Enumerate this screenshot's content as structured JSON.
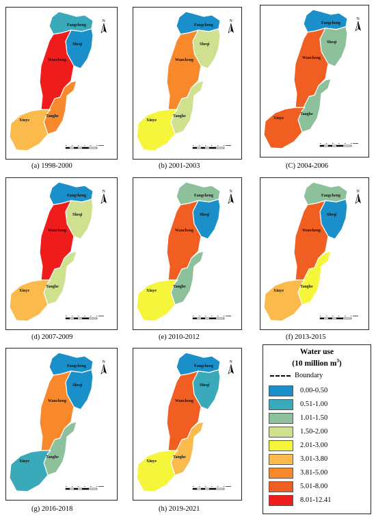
{
  "colors": {
    "c1": "#1a8fc9",
    "c2": "#3aa9b9",
    "c3": "#8dc19b",
    "c4": "#cfe08e",
    "c5": "#f5f53c",
    "c6": "#fbbb4c",
    "c7": "#f7882b",
    "c8": "#f05e22",
    "c9": "#ef1c1c"
  },
  "region_names": [
    "Fangcheng",
    "Sheqi",
    "Wancheng",
    "Tanghe",
    "Xinye"
  ],
  "north_label": "N",
  "panels": [
    {
      "caption": "(a)  1998-2000",
      "fills": [
        "c2",
        "c1",
        "c9",
        "c7",
        "c6"
      ]
    },
    {
      "caption": "(b)  2001-2003",
      "fills": [
        "c1",
        "c4",
        "c7",
        "c4",
        "c5"
      ]
    },
    {
      "caption": "(C)  2004-2006",
      "fills": [
        "c1",
        "c3",
        "c8",
        "c3",
        "c8"
      ]
    },
    {
      "caption": "(d)  2007-2009",
      "fills": [
        "c1",
        "c4",
        "c9",
        "c4",
        "c6"
      ]
    },
    {
      "caption": "(e)  2010-2012",
      "fills": [
        "c3",
        "c1",
        "c8",
        "c3",
        "c5"
      ]
    },
    {
      "caption": "(f)  2013-2015",
      "fills": [
        "c3",
        "c1",
        "c8",
        "c5",
        "c6"
      ]
    },
    {
      "caption": "(g)  2016-2018",
      "fills": [
        "c1",
        "c1",
        "c7",
        "c3",
        "c2"
      ]
    },
    {
      "caption": "(h)  2019-2021",
      "fills": [
        "c1",
        "c2",
        "c8",
        "c6",
        "c5"
      ]
    }
  ],
  "legend": {
    "title_line1": "Water use",
    "title_line2": "(10 million m",
    "title_sup": "3",
    "title_close": ")",
    "boundary_label": "Boundary",
    "items": [
      {
        "label": "0.00-0.50",
        "color": "#1a8fc9"
      },
      {
        "label": "0.51-1.00",
        "color": "#3aa9b9"
      },
      {
        "label": "1.01-1.50",
        "color": "#8dc19b"
      },
      {
        "label": "1.50-2.00",
        "color": "#cfe08e"
      },
      {
        "label": "2.01-3.00",
        "color": "#f5f53c"
      },
      {
        "label": "3.01-3.80",
        "color": "#fbbb4c"
      },
      {
        "label": "3.81-5.00",
        "color": "#f7882b"
      },
      {
        "label": "5.01-8.00",
        "color": "#f05e22"
      },
      {
        "label": "8.01-12.41",
        "color": "#ef1c1c"
      }
    ]
  }
}
